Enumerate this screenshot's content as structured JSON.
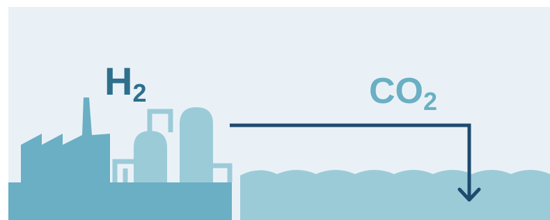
{
  "labels": [
    {
      "text": "H",
      "subscript": "2"
    },
    {
      "text": "CO",
      "subscript": "2"
    }
  ]
}
